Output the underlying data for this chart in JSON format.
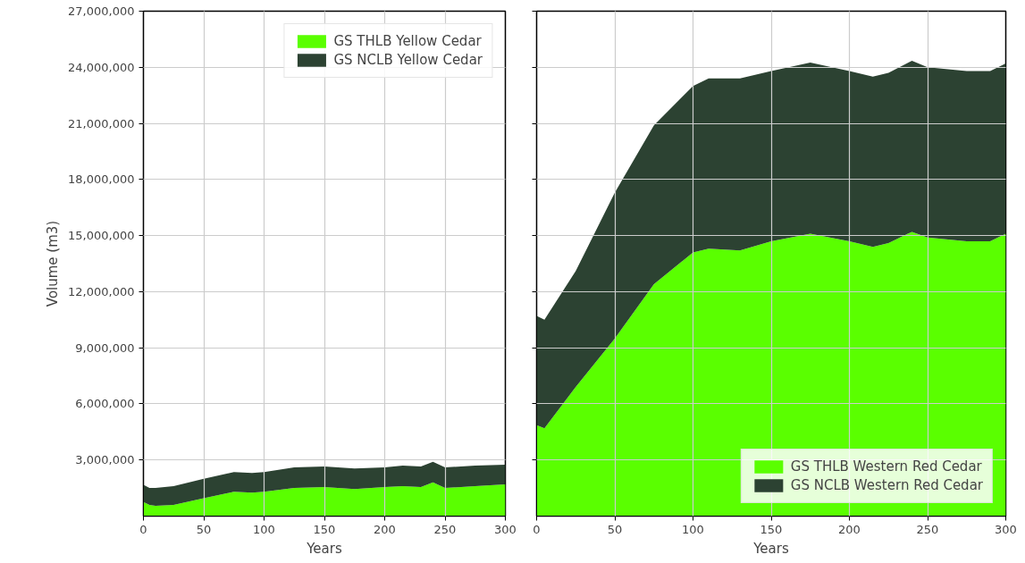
{
  "chart_data": [
    {
      "type": "area",
      "stacked": true,
      "xlabel": "Years",
      "ylabel": "Volume (m3)",
      "x": [
        0,
        5,
        10,
        25,
        50,
        75,
        90,
        100,
        125,
        150,
        175,
        200,
        215,
        230,
        240,
        250,
        275,
        300
      ],
      "series": [
        {
          "name": "GS THLB Yellow Cedar",
          "color": "#5aff00",
          "values": [
            750000,
            600000,
            550000,
            600000,
            950000,
            1300000,
            1250000,
            1300000,
            1500000,
            1550000,
            1450000,
            1550000,
            1600000,
            1550000,
            1800000,
            1500000,
            1600000,
            1700000
          ]
        },
        {
          "name": "GS NCLB Yellow Cedar",
          "color": "#2c4232",
          "values": [
            920000,
            900000,
            950000,
            1000000,
            1050000,
            1050000,
            1050000,
            1050000,
            1100000,
            1100000,
            1100000,
            1050000,
            1100000,
            1100000,
            1100000,
            1100000,
            1100000,
            1050000
          ]
        }
      ],
      "xlim": [
        0,
        300
      ],
      "ylim": [
        0,
        27000000
      ],
      "xticks": [
        0,
        50,
        100,
        150,
        200,
        250,
        300
      ],
      "yticks": [
        {
          "value": 3000000,
          "label": "3,000,000"
        },
        {
          "value": 6000000,
          "label": "6,000,000"
        },
        {
          "value": 9000000,
          "label": "9,000,000"
        },
        {
          "value": 12000000,
          "label": "12,000,000"
        },
        {
          "value": 15000000,
          "label": "15,000,000"
        },
        {
          "value": 18000000,
          "label": "18,000,000"
        },
        {
          "value": 21000000,
          "label": "21,000,000"
        },
        {
          "value": 24000000,
          "label": "24,000,000"
        },
        {
          "value": 27000000,
          "label": "27,000,000"
        }
      ],
      "grid": true,
      "legend": "top right"
    },
    {
      "type": "area",
      "stacked": true,
      "xlabel": "Years",
      "x": [
        0,
        5,
        25,
        50,
        75,
        100,
        110,
        130,
        150,
        175,
        200,
        215,
        225,
        240,
        250,
        275,
        290,
        300
      ],
      "series": [
        {
          "name": "GS THLB Western Red Cedar",
          "color": "#5aff00",
          "values": [
            4860000,
            4700000,
            6900000,
            9500000,
            12400000,
            14100000,
            14300000,
            14200000,
            14700000,
            15100000,
            14700000,
            14400000,
            14600000,
            15200000,
            14900000,
            14700000,
            14700000,
            15100000
          ]
        },
        {
          "name": "GS NCLB Western Red Cedar",
          "color": "#2c4232",
          "values": [
            5840000,
            5800000,
            6200000,
            7800000,
            8500000,
            8900000,
            9100000,
            9200000,
            9100000,
            9150000,
            9100000,
            9100000,
            9100000,
            9150000,
            9100000,
            9100000,
            9100000,
            9100000
          ]
        }
      ],
      "xlim": [
        0,
        300
      ],
      "ylim": [
        0,
        27000000
      ],
      "xticks": [
        0,
        50,
        100,
        150,
        200,
        250,
        300
      ],
      "grid": true,
      "legend": "bottom right",
      "tick_labels": "x",
      "yticks": [
        {
          "value": 3000000,
          "label": null
        },
        {
          "value": 6000000,
          "label": null
        },
        {
          "value": 9000000,
          "label": null
        },
        {
          "value": 12000000,
          "label": null
        },
        {
          "value": 15000000,
          "label": null
        },
        {
          "value": 18000000,
          "label": null
        },
        {
          "value": 21000000,
          "label": null
        },
        {
          "value": 24000000,
          "label": null
        },
        {
          "value": 27000000,
          "label": null
        }
      ]
    }
  ]
}
